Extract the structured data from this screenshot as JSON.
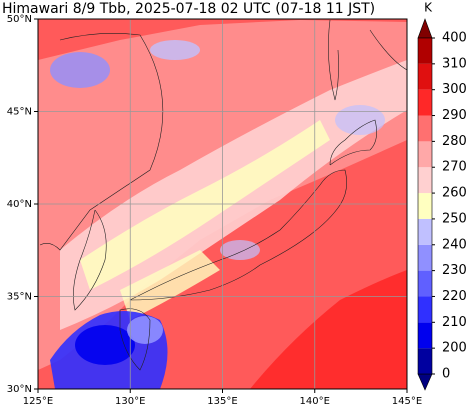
{
  "map": {
    "title": "Himawari 8/9 Tbb, 2025-07-18 02 UTC (07-18 11 JST)",
    "xlim": [
      125,
      145
    ],
    "ylim": [
      30,
      50
    ],
    "lon_ticks": [
      {
        "value": 125,
        "label": "125°E"
      },
      {
        "value": 130,
        "label": "130°E"
      },
      {
        "value": 135,
        "label": "135°E"
      },
      {
        "value": 140,
        "label": "140°E"
      },
      {
        "value": 145,
        "label": "145°E"
      }
    ],
    "lat_ticks": [
      {
        "value": 30,
        "label": "30°N"
      },
      {
        "value": 35,
        "label": "35°N"
      },
      {
        "value": 40,
        "label": "40°N"
      },
      {
        "value": 45,
        "label": "45°N"
      },
      {
        "value": 50,
        "label": "50°N"
      }
    ],
    "grid": true,
    "colorbar": {
      "unit": "K",
      "ticks": [
        0,
        200,
        210,
        220,
        230,
        240,
        250,
        260,
        270,
        280,
        290,
        300,
        310,
        400
      ],
      "colors": [
        "#0000a0",
        "#0000ee",
        "#3030ff",
        "#6060ff",
        "#9090ff",
        "#c0c0ff",
        "#ffffc0",
        "#ffd0d0",
        "#ffa8a8",
        "#ff7070",
        "#ff2828",
        "#e01010",
        "#b00000"
      ],
      "under_color": "#000080",
      "over_color": "#800000"
    }
  }
}
